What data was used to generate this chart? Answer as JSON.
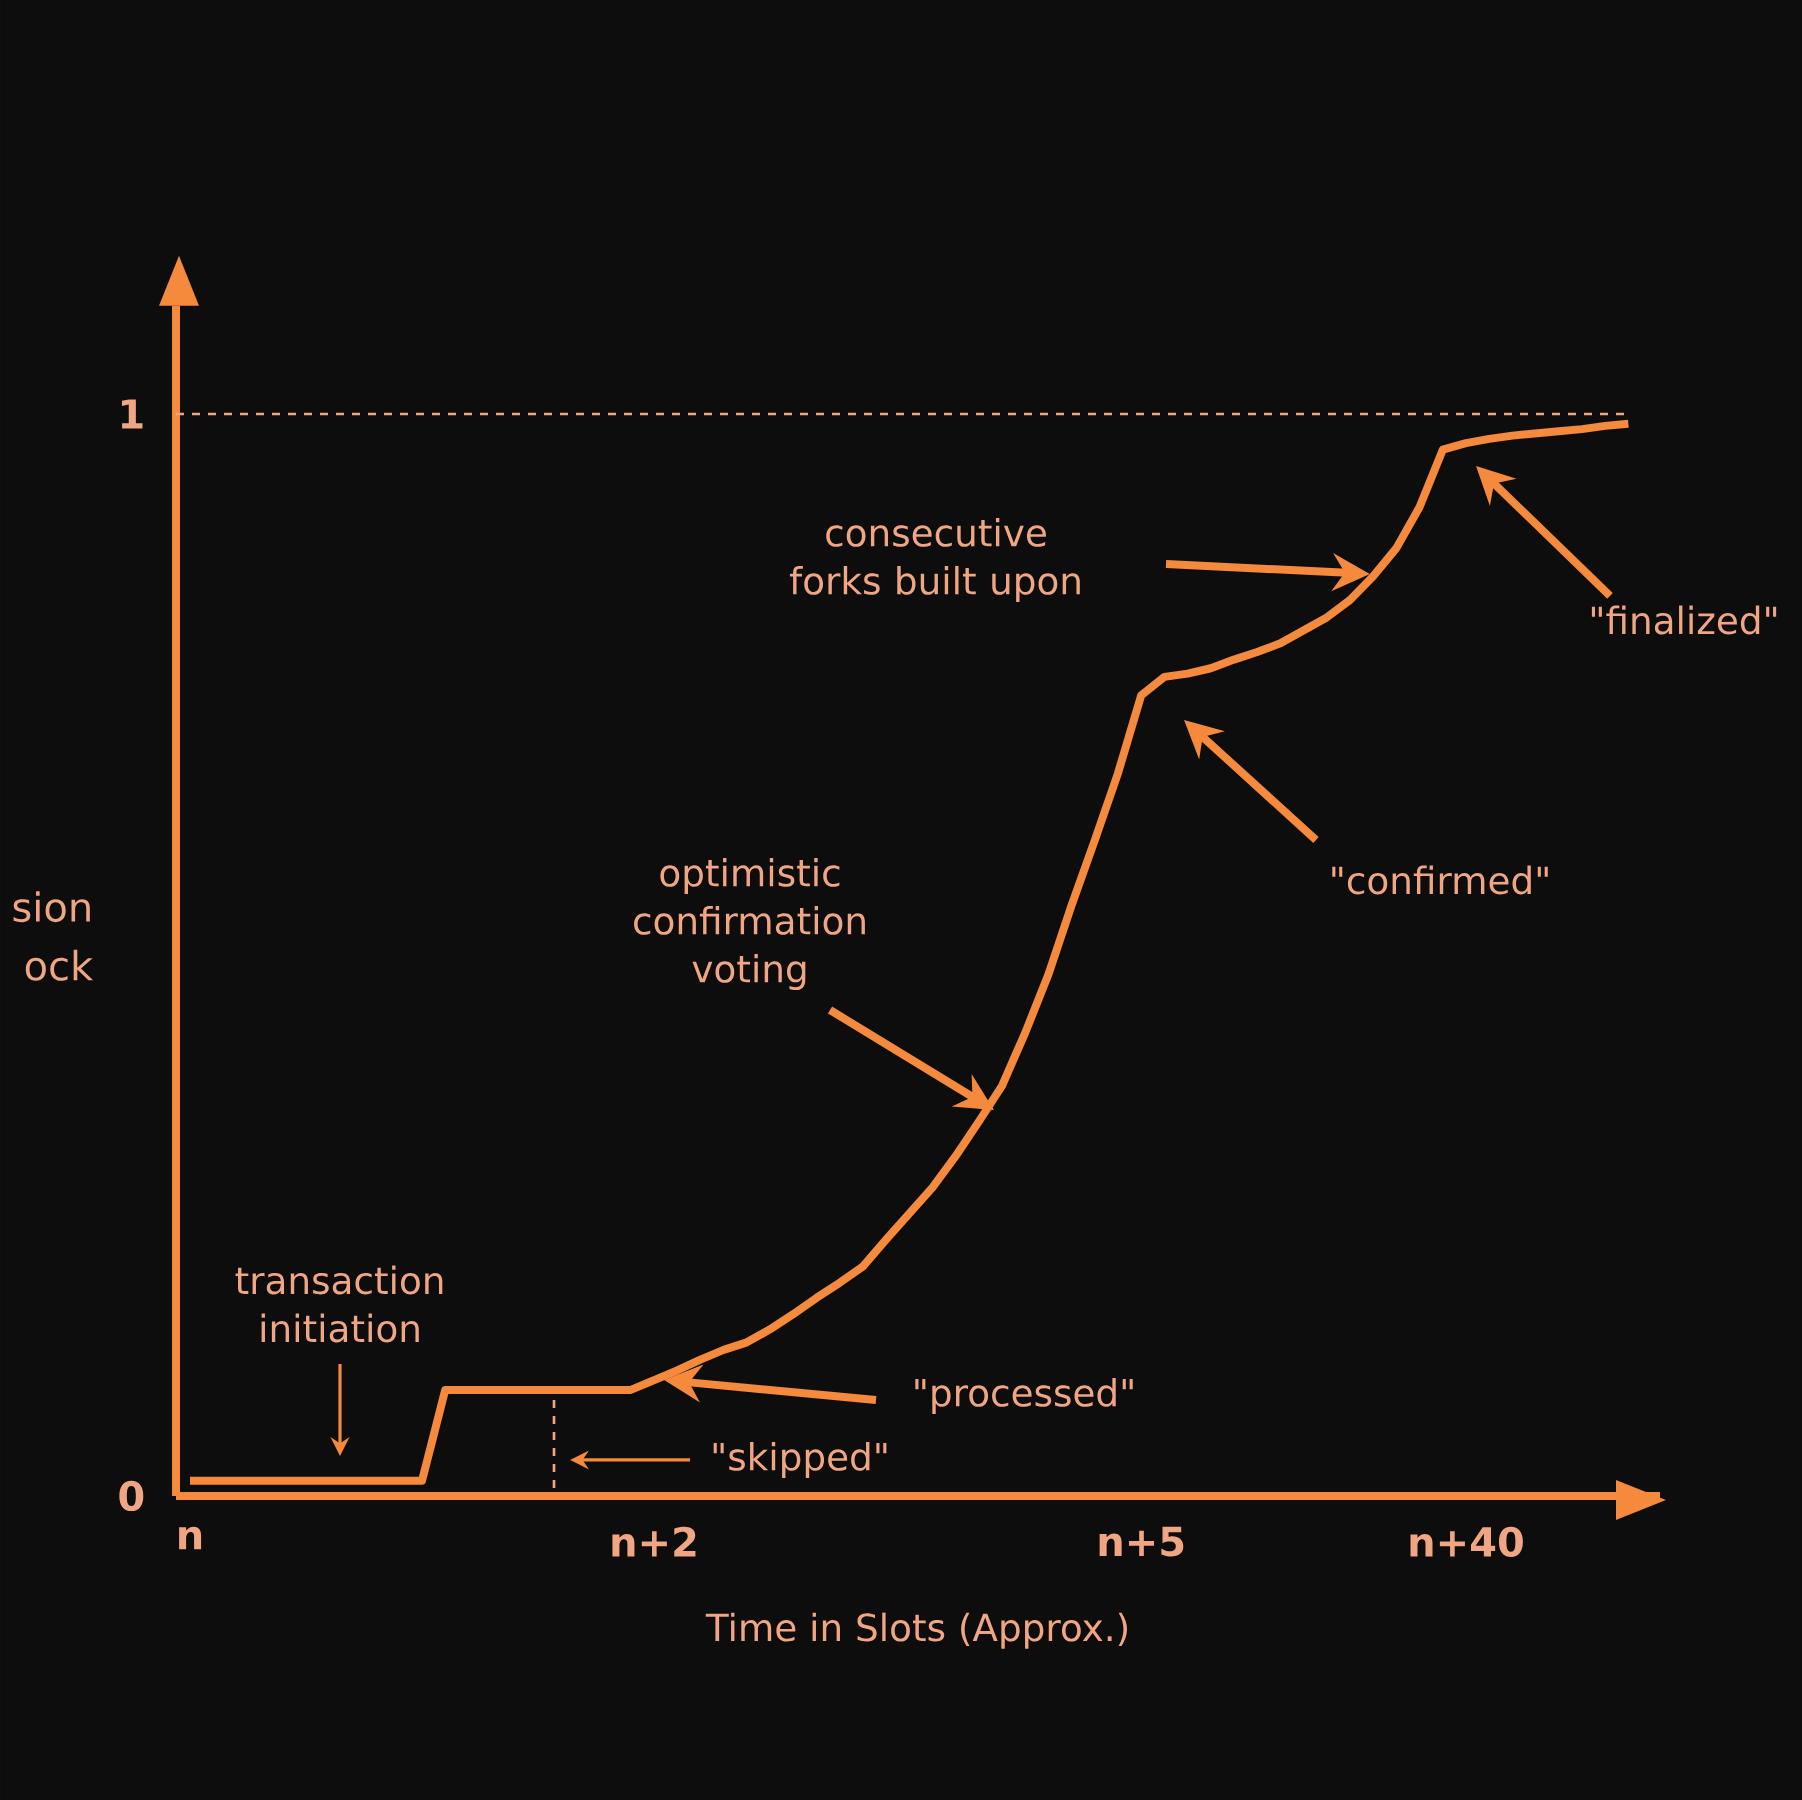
{
  "chart_data": {
    "type": "line",
    "xlabel": "Time in Slots (Approx.)",
    "ylabel": "sion ock",
    "categories": [
      "n",
      null,
      null,
      null,
      null,
      null,
      null,
      null,
      null,
      null,
      null,
      null,
      null,
      null,
      null,
      null,
      null,
      null,
      null,
      null,
      "n+2",
      null,
      null,
      null,
      null,
      null,
      null,
      null,
      null,
      null,
      null,
      null,
      null,
      null,
      null,
      null,
      null,
      null,
      null,
      null,
      null,
      "n+5",
      null,
      null,
      null,
      null,
      null,
      null,
      null,
      null,
      null,
      null,
      null,
      null,
      null,
      "n+40",
      null,
      null,
      null,
      null,
      null,
      null,
      null
    ],
    "ylim": [
      0,
      1.1
    ],
    "yticks": [
      0,
      1
    ],
    "ref_lines": [
      {
        "axis": "y",
        "value": 1,
        "color": "#f0a583",
        "line_style": "dashed"
      }
    ],
    "series": [
      {
        "color": "#f58a3c",
        "line_style": "solid",
        "values": [
          0.014,
          0.014,
          0.014,
          0.014,
          0.014,
          0.014,
          0.014,
          0.014,
          0.014,
          0.014,
          0.014,
          0.098,
          0.098,
          0.098,
          0.098,
          0.098,
          0.098,
          0.098,
          0.098,
          0.098,
          0.107,
          0.116,
          0.126,
          0.135,
          0.142,
          0.154,
          0.168,
          0.183,
          0.197,
          0.212,
          0.237,
          0.261,
          0.285,
          0.314,
          0.346,
          0.379,
          0.428,
          0.482,
          0.546,
          0.606,
          0.668,
          0.74,
          0.757,
          0.76,
          0.765,
          0.773,
          0.78,
          0.788,
          0.8,
          0.812,
          0.828,
          0.85,
          0.876,
          0.914,
          0.967,
          0.973,
          0.977,
          0.98,
          0.982,
          0.984,
          0.986,
          0.989,
          0.991
        ]
      }
    ],
    "annotations": [
      "transaction initiation",
      "\"skipped\"",
      "\"processed\"",
      "optimistic confirmation voting",
      "\"confirmed\"",
      "consecutive forks built upon",
      "\"finalized\""
    ],
    "grid": false,
    "marker": "none"
  }
}
